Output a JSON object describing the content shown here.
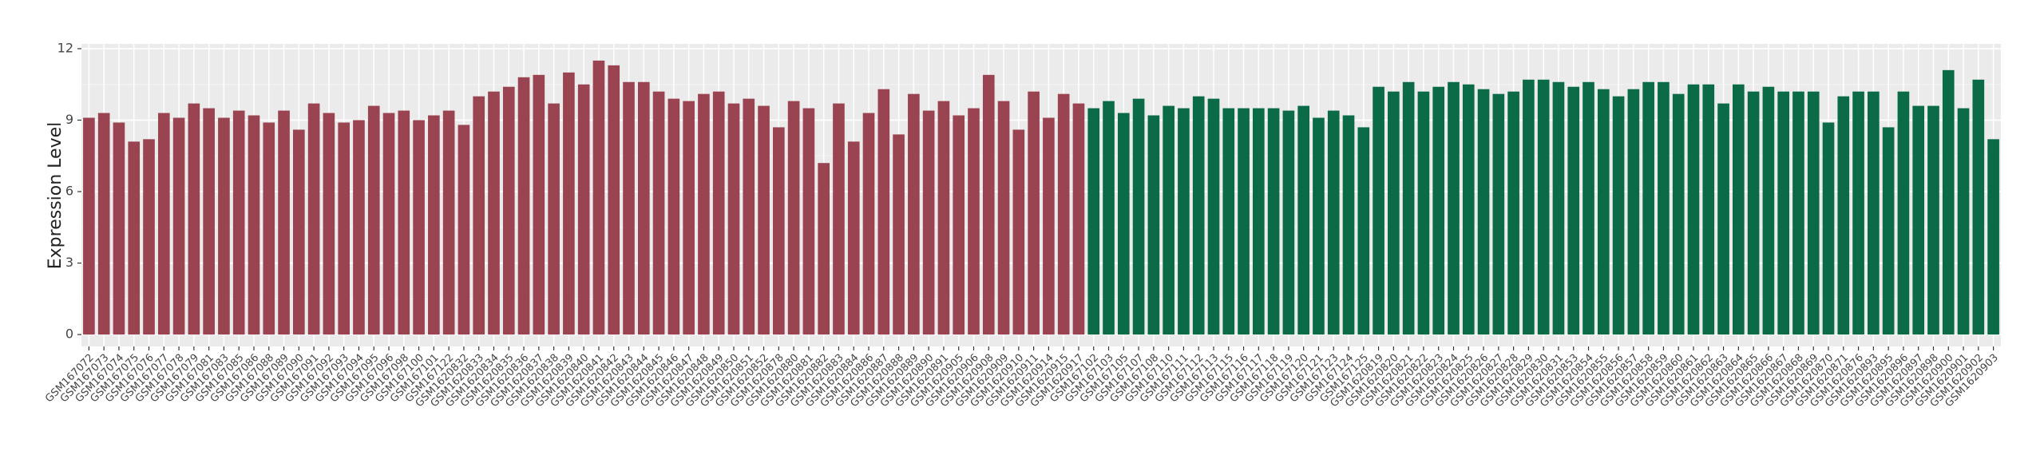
{
  "chart_data": {
    "type": "bar",
    "y_label": "Expression Level",
    "categories": [
      "GSM167072",
      "GSM167073",
      "GSM167074",
      "GSM167075",
      "GSM167076",
      "GSM167077",
      "GSM167078",
      "GSM167079",
      "GSM167081",
      "GSM167083",
      "GSM167085",
      "GSM167086",
      "GSM167088",
      "GSM167089",
      "GSM167090",
      "GSM167091",
      "GSM167092",
      "GSM167093",
      "GSM167094",
      "GSM167095",
      "GSM167096",
      "GSM167098",
      "GSM167100",
      "GSM167101",
      "GSM167122",
      "GSM1620832",
      "GSM1620833",
      "GSM1620834",
      "GSM1620835",
      "GSM1620836",
      "GSM1620837",
      "GSM1620838",
      "GSM1620839",
      "GSM1620840",
      "GSM1620841",
      "GSM1620842",
      "GSM1620843",
      "GSM1620844",
      "GSM1620845",
      "GSM1620846",
      "GSM1620847",
      "GSM1620848",
      "GSM1620849",
      "GSM1620850",
      "GSM1620851",
      "GSM1620852",
      "GSM1620878",
      "GSM1620880",
      "GSM1620881",
      "GSM1620882",
      "GSM1620883",
      "GSM1620884",
      "GSM1620886",
      "GSM1620887",
      "GSM1620888",
      "GSM1620889",
      "GSM1620890",
      "GSM1620891",
      "GSM1620905",
      "GSM1620906",
      "GSM1620908",
      "GSM1620909",
      "GSM1620910",
      "GSM1620911",
      "GSM1620914",
      "GSM1620915",
      "GSM1620917",
      "GSM167102",
      "GSM167103",
      "GSM167105",
      "GSM167107",
      "GSM167108",
      "GSM167110",
      "GSM167111",
      "GSM167112",
      "GSM167113",
      "GSM167115",
      "GSM167116",
      "GSM167117",
      "GSM167118",
      "GSM167119",
      "GSM167120",
      "GSM167121",
      "GSM167123",
      "GSM167124",
      "GSM167125",
      "GSM1620819",
      "GSM1620820",
      "GSM1620821",
      "GSM1620822",
      "GSM1620823",
      "GSM1620824",
      "GSM1620825",
      "GSM1620826",
      "GSM1620827",
      "GSM1620828",
      "GSM1620829",
      "GSM1620830",
      "GSM1620831",
      "GSM1620853",
      "GSM1620854",
      "GSM1620855",
      "GSM1620856",
      "GSM1620857",
      "GSM1620858",
      "GSM1620859",
      "GSM1620860",
      "GSM1620861",
      "GSM1620862",
      "GSM1620863",
      "GSM1620864",
      "GSM1620865",
      "GSM1620866",
      "GSM1620867",
      "GSM1620868",
      "GSM1620869",
      "GSM1620870",
      "GSM1620871",
      "GSM1620876",
      "GSM1620893",
      "GSM1620895",
      "GSM1620896",
      "GSM1620897",
      "GSM1620898",
      "GSM1620900",
      "GSM1620901",
      "GSM1620902",
      "GSM1620903"
    ],
    "values": [
      9.1,
      9.3,
      8.9,
      8.1,
      8.2,
      9.3,
      9.1,
      9.7,
      9.5,
      9.1,
      9.4,
      9.2,
      8.9,
      9.4,
      8.6,
      9.7,
      9.3,
      8.9,
      9.0,
      9.6,
      9.3,
      9.4,
      9.0,
      9.2,
      9.4,
      8.8,
      10.0,
      10.2,
      10.4,
      10.8,
      10.9,
      9.7,
      11.0,
      10.5,
      11.5,
      11.3,
      10.6,
      10.6,
      10.2,
      9.9,
      9.8,
      10.1,
      10.2,
      9.7,
      9.9,
      9.6,
      8.7,
      9.8,
      9.5,
      7.2,
      9.7,
      8.1,
      9.3,
      10.3,
      8.4,
      10.1,
      9.4,
      9.8,
      9.2,
      9.5,
      10.9,
      9.8,
      8.6,
      10.2,
      9.1,
      10.1,
      9.7,
      9.5,
      9.8,
      9.3,
      9.9,
      9.2,
      9.6,
      9.5,
      10.0,
      9.9,
      9.5,
      9.5,
      9.5,
      9.5,
      9.4,
      9.6,
      9.1,
      9.4,
      9.2,
      8.7,
      10.4,
      10.2,
      10.6,
      10.2,
      10.4,
      10.6,
      10.5,
      10.3,
      10.1,
      10.2,
      10.7,
      10.7,
      10.6,
      10.4,
      10.6,
      10.3,
      10.0,
      10.3,
      10.6,
      10.6,
      10.1,
      10.5,
      10.5,
      9.7,
      10.5,
      10.2,
      10.4,
      10.2,
      10.2,
      10.2,
      8.9,
      10.0,
      10.2,
      10.2,
      8.7,
      10.2,
      9.6,
      9.6,
      11.1,
      9.5,
      10.7,
      8.2
    ],
    "colors": [
      "#9b4451",
      "#9b4451",
      "#9b4451",
      "#9b4451",
      "#9b4451",
      "#9b4451",
      "#9b4451",
      "#9b4451",
      "#9b4451",
      "#9b4451",
      "#9b4451",
      "#9b4451",
      "#9b4451",
      "#9b4451",
      "#9b4451",
      "#9b4451",
      "#9b4451",
      "#9b4451",
      "#9b4451",
      "#9b4451",
      "#9b4451",
      "#9b4451",
      "#9b4451",
      "#9b4451",
      "#9b4451",
      "#9b4451",
      "#9b4451",
      "#9b4451",
      "#9b4451",
      "#9b4451",
      "#9b4451",
      "#9b4451",
      "#9b4451",
      "#9b4451",
      "#9b4451",
      "#9b4451",
      "#9b4451",
      "#9b4451",
      "#9b4451",
      "#9b4451",
      "#9b4451",
      "#9b4451",
      "#9b4451",
      "#9b4451",
      "#9b4451",
      "#9b4451",
      "#9b4451",
      "#9b4451",
      "#9b4451",
      "#9b4451",
      "#9b4451",
      "#9b4451",
      "#9b4451",
      "#9b4451",
      "#9b4451",
      "#9b4451",
      "#9b4451",
      "#9b4451",
      "#9b4451",
      "#9b4451",
      "#9b4451",
      "#9b4451",
      "#9b4451",
      "#9b4451",
      "#9b4451",
      "#9b4451",
      "#9b4451",
      "#0b6b47",
      "#0b6b47",
      "#0b6b47",
      "#0b6b47",
      "#0b6b47",
      "#0b6b47",
      "#0b6b47",
      "#0b6b47",
      "#0b6b47",
      "#0b6b47",
      "#0b6b47",
      "#0b6b47",
      "#0b6b47",
      "#0b6b47",
      "#0b6b47",
      "#0b6b47",
      "#0b6b47",
      "#0b6b47",
      "#0b6b47",
      "#0b6b47",
      "#0b6b47",
      "#0b6b47",
      "#0b6b47",
      "#0b6b47",
      "#0b6b47",
      "#0b6b47",
      "#0b6b47",
      "#0b6b47",
      "#0b6b47",
      "#0b6b47",
      "#0b6b47",
      "#0b6b47",
      "#0b6b47",
      "#0b6b47",
      "#0b6b47",
      "#0b6b47",
      "#0b6b47",
      "#0b6b47",
      "#0b6b47",
      "#0b6b47",
      "#0b6b47",
      "#0b6b47",
      "#0b6b47",
      "#0b6b47",
      "#0b6b47",
      "#0b6b47",
      "#0b6b47",
      "#0b6b47",
      "#0b6b47",
      "#0b6b47",
      "#0b6b47",
      "#0b6b47",
      "#0b6b47",
      "#0b6b47",
      "#0b6b47",
      "#0b6b47",
      "#0b6b47",
      "#0b6b47",
      "#0b6b47",
      "#0b6b47",
      "#0b6b47"
    ],
    "ylim": [
      -0.5,
      12.2
    ],
    "yticks": [
      0,
      3,
      6,
      9,
      12
    ],
    "grid": true
  }
}
